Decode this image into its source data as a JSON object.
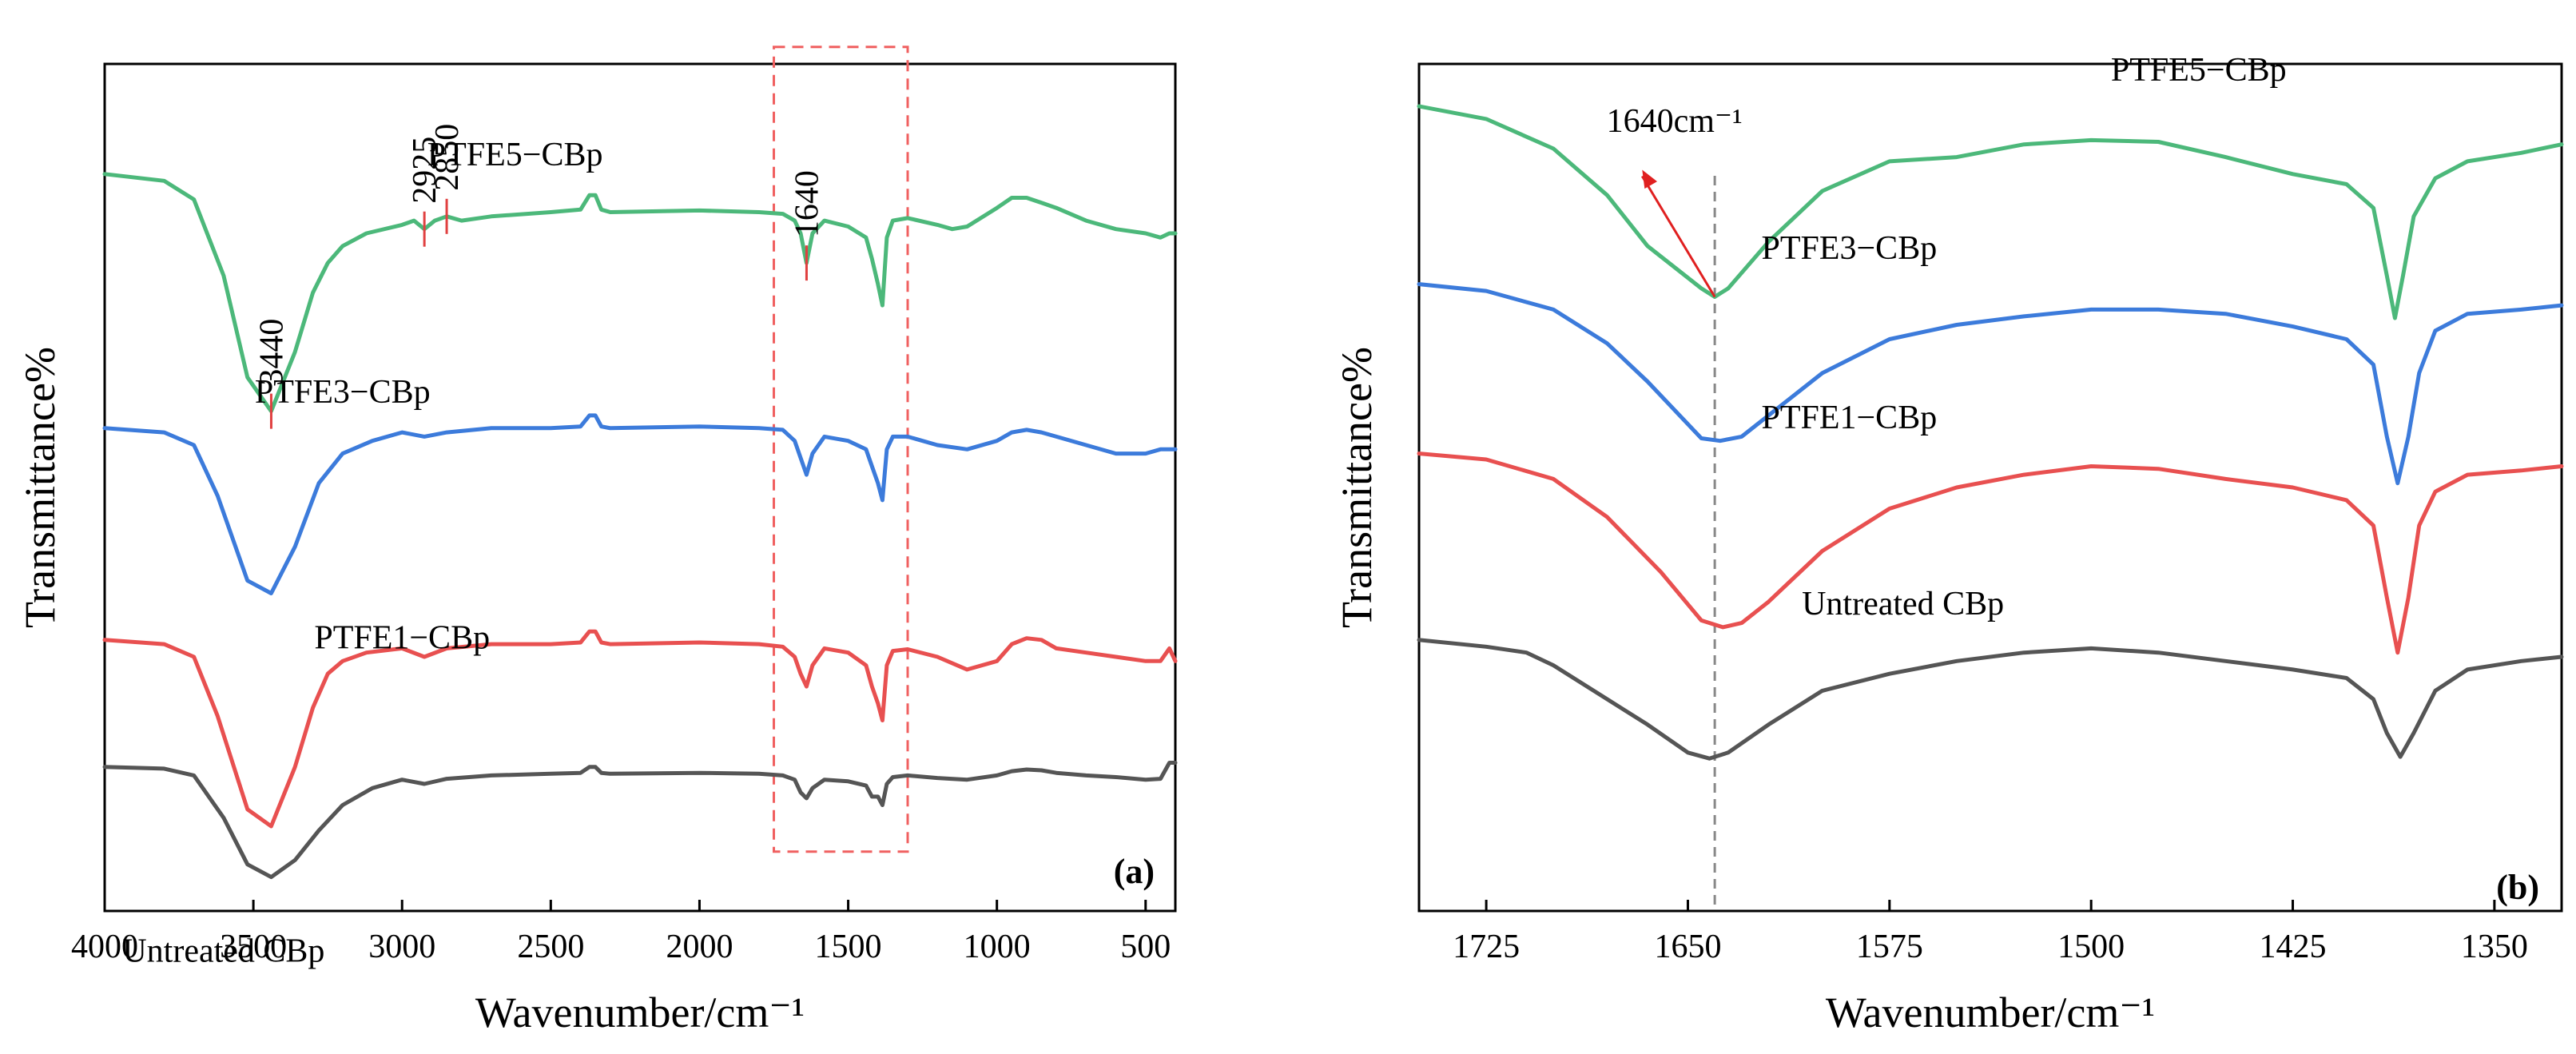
{
  "chart_data": [
    {
      "type": "line",
      "panel_label": "(a)",
      "xlabel": "Wavenumber/cm⁻¹",
      "ylabel": "Transmittance%",
      "xlim": [
        4000,
        400
      ],
      "x_reversed": true,
      "xticks": [
        4000,
        3500,
        3000,
        2500,
        2000,
        1500,
        1000,
        500
      ],
      "ylim": [
        0,
        100
      ],
      "yticks_shown": false,
      "grid": false,
      "legend": "none",
      "series": [
        {
          "name": "PTFE5−CBp",
          "color": "#4cb87a",
          "x": [
            4000,
            3800,
            3700,
            3600,
            3520,
            3440,
            3360,
            3300,
            3250,
            3200,
            3120,
            3000,
            2960,
            2925,
            2890,
            2850,
            2800,
            2700,
            2500,
            2400,
            2370,
            2350,
            2330,
            2300,
            2000,
            1800,
            1720,
            1680,
            1660,
            1640,
            1620,
            1580,
            1500,
            1440,
            1420,
            1400,
            1385,
            1370,
            1350,
            1300,
            1200,
            1150,
            1100,
            1000,
            950,
            900,
            850,
            800,
            700,
            600,
            500,
            450,
            420,
            400
          ],
          "y": [
            87,
            86.2,
            84,
            75,
            63,
            59,
            66,
            73,
            76.5,
            78.5,
            80,
            81,
            81.5,
            80.5,
            81.5,
            82,
            81.5,
            82,
            82.5,
            82.8,
            84.5,
            84.5,
            82.8,
            82.5,
            82.7,
            82.5,
            82.3,
            81.5,
            80,
            76.5,
            80,
            81.5,
            80.8,
            79.5,
            77,
            74,
            71.5,
            79.5,
            81.5,
            81.8,
            81,
            80.5,
            80.8,
            83,
            84.2,
            84.2,
            83.6,
            83,
            81.5,
            80.5,
            80,
            79.5,
            80,
            80
          ]
        },
        {
          "name": "PTFE3−CBp",
          "color": "#3c7bdb",
          "x": [
            4000,
            3800,
            3700,
            3620,
            3520,
            3440,
            3360,
            3280,
            3200,
            3100,
            3000,
            2925,
            2850,
            2700,
            2500,
            2400,
            2370,
            2350,
            2330,
            2300,
            2000,
            1800,
            1720,
            1680,
            1660,
            1640,
            1620,
            1580,
            1500,
            1440,
            1420,
            1400,
            1385,
            1370,
            1350,
            1300,
            1200,
            1100,
            1000,
            950,
            900,
            850,
            800,
            700,
            600,
            500,
            450,
            400
          ],
          "y": [
            57,
            56.5,
            55,
            49,
            39,
            37.5,
            43,
            50.5,
            54,
            55.5,
            56.5,
            56,
            56.5,
            57,
            57,
            57.2,
            58.5,
            58.5,
            57.2,
            57,
            57.2,
            57,
            56.8,
            55.5,
            53.5,
            51.5,
            54,
            56,
            55.5,
            54.5,
            52.5,
            50.5,
            48.5,
            54.5,
            56,
            56,
            55,
            54.5,
            55.5,
            56.5,
            56.8,
            56.5,
            56,
            55,
            54,
            54,
            54.5,
            54.5
          ]
        },
        {
          "name": "PTFE1−CBp",
          "color": "#e85050",
          "x": [
            4000,
            3800,
            3700,
            3620,
            3520,
            3440,
            3360,
            3300,
            3250,
            3200,
            3120,
            3000,
            2925,
            2850,
            2700,
            2500,
            2400,
            2370,
            2350,
            2330,
            2300,
            2000,
            1800,
            1720,
            1680,
            1660,
            1640,
            1620,
            1580,
            1500,
            1440,
            1420,
            1400,
            1385,
            1370,
            1350,
            1300,
            1200,
            1100,
            1000,
            950,
            900,
            850,
            800,
            700,
            600,
            500,
            450,
            420,
            400
          ],
          "y": [
            32,
            31.5,
            30,
            23,
            12,
            10,
            17,
            24,
            28,
            29.5,
            30.5,
            31,
            30,
            31,
            31.5,
            31.5,
            31.7,
            33,
            33,
            31.7,
            31.5,
            31.7,
            31.5,
            31.2,
            30,
            28,
            26.5,
            29,
            31,
            30.5,
            29,
            26.5,
            24.5,
            22.5,
            29,
            30.7,
            30.9,
            30,
            28.5,
            29.5,
            31.5,
            32.2,
            32,
            31,
            30.5,
            30,
            29.5,
            29.5,
            31,
            29.5
          ]
        },
        {
          "name": "Untreated CBp",
          "color": "#555555",
          "x": [
            4000,
            3800,
            3700,
            3650,
            3600,
            3520,
            3440,
            3360,
            3280,
            3200,
            3100,
            3000,
            2925,
            2850,
            2700,
            2500,
            2400,
            2370,
            2350,
            2330,
            2300,
            2000,
            1800,
            1720,
            1680,
            1660,
            1640,
            1620,
            1580,
            1500,
            1440,
            1420,
            1400,
            1385,
            1370,
            1350,
            1300,
            1200,
            1100,
            1000,
            950,
            900,
            850,
            800,
            700,
            600,
            500,
            450,
            420,
            400
          ],
          "y": [
            17,
            16.8,
            16,
            13.5,
            11,
            5.5,
            4,
            6,
            9.5,
            12.5,
            14.5,
            15.5,
            15,
            15.6,
            16,
            16.2,
            16.3,
            17,
            17,
            16.3,
            16.2,
            16.3,
            16.2,
            16,
            15.5,
            14,
            13.3,
            14.5,
            15.5,
            15.3,
            14.8,
            13.5,
            13.5,
            12.5,
            15,
            15.8,
            16,
            15.7,
            15.5,
            16,
            16.5,
            16.7,
            16.6,
            16.3,
            16,
            15.8,
            15.5,
            15.6,
            17.5,
            17.5
          ]
        }
      ],
      "annotations": [
        {
          "text": "3440",
          "x": 3440
        },
        {
          "text": "2925",
          "x": 2925
        },
        {
          "text": "2850",
          "x": 2850
        },
        {
          "text": "1640",
          "x": 1640
        }
      ],
      "highlight_box": {
        "x_range": [
          1750,
          1300
        ],
        "y_range": [
          7,
          102
        ]
      }
    },
    {
      "type": "line",
      "panel_label": "(b)",
      "xlabel": "Wavenumber/cm⁻¹",
      "ylabel": "Transmittance%",
      "xlim": [
        1750,
        1325
      ],
      "x_reversed": true,
      "xticks": [
        1725,
        1650,
        1575,
        1500,
        1425,
        1350
      ],
      "ylim": [
        0,
        100
      ],
      "yticks_shown": false,
      "grid": false,
      "legend": "none",
      "series": [
        {
          "name": "PTFE5−CBp",
          "color": "#4cb87a",
          "x": [
            1750,
            1725,
            1700,
            1680,
            1665,
            1645,
            1640,
            1635,
            1620,
            1600,
            1575,
            1550,
            1525,
            1500,
            1475,
            1450,
            1425,
            1405,
            1395,
            1390,
            1387,
            1384,
            1380,
            1372,
            1360,
            1340,
            1325
          ],
          "y": [
            95,
            93.5,
            90,
            84.5,
            78.5,
            73.5,
            72.5,
            73.5,
            79,
            85,
            88.5,
            89,
            90.5,
            91,
            90.8,
            89,
            87,
            85.8,
            83,
            75,
            70,
            75,
            82,
            86.5,
            88.5,
            89.5,
            90.5
          ]
        },
        {
          "name": "PTFE3−CBp",
          "color": "#3c7bdb",
          "x": [
            1750,
            1725,
            1700,
            1680,
            1665,
            1645,
            1638,
            1630,
            1620,
            1600,
            1575,
            1550,
            1525,
            1500,
            1475,
            1450,
            1425,
            1405,
            1395,
            1390,
            1386,
            1382,
            1378,
            1372,
            1360,
            1340,
            1325
          ],
          "y": [
            74,
            73.2,
            71,
            67,
            62.5,
            55.8,
            55.5,
            56,
            58.5,
            63.5,
            67.5,
            69.2,
            70.2,
            71,
            71,
            70.5,
            69,
            67.5,
            64.5,
            56,
            50.5,
            56,
            63.5,
            68.5,
            70.5,
            71,
            71.5
          ]
        },
        {
          "name": "PTFE1−CBp",
          "color": "#e85050",
          "x": [
            1750,
            1725,
            1700,
            1680,
            1660,
            1645,
            1637,
            1630,
            1620,
            1600,
            1575,
            1550,
            1525,
            1500,
            1475,
            1450,
            1425,
            1405,
            1395,
            1390,
            1386,
            1382,
            1378,
            1372,
            1360,
            1340,
            1325
          ],
          "y": [
            54,
            53.3,
            51,
            46.5,
            40,
            34.3,
            33.5,
            34,
            36.5,
            42.5,
            47.5,
            50,
            51.5,
            52.5,
            52.2,
            51,
            50,
            48.5,
            45.5,
            37,
            30.5,
            37,
            45.5,
            49.5,
            51.5,
            52,
            52.5
          ]
        },
        {
          "name": "Untreated CBp",
          "color": "#555555",
          "x": [
            1750,
            1725,
            1710,
            1700,
            1680,
            1665,
            1650,
            1642,
            1635,
            1620,
            1600,
            1575,
            1550,
            1525,
            1500,
            1475,
            1450,
            1425,
            1405,
            1395,
            1390,
            1385,
            1380,
            1372,
            1360,
            1340,
            1325
          ],
          "y": [
            32,
            31.2,
            30.5,
            29,
            25,
            22,
            18.7,
            18,
            18.7,
            22,
            26,
            28,
            29.5,
            30.5,
            31,
            30.5,
            29.5,
            28.5,
            27.5,
            25,
            21,
            18.2,
            21,
            26,
            28.5,
            29.5,
            30
          ]
        }
      ],
      "annotations": [
        {
          "text": "1640cm⁻¹",
          "x": 1640
        }
      ],
      "reference_line_x": 1640
    }
  ]
}
